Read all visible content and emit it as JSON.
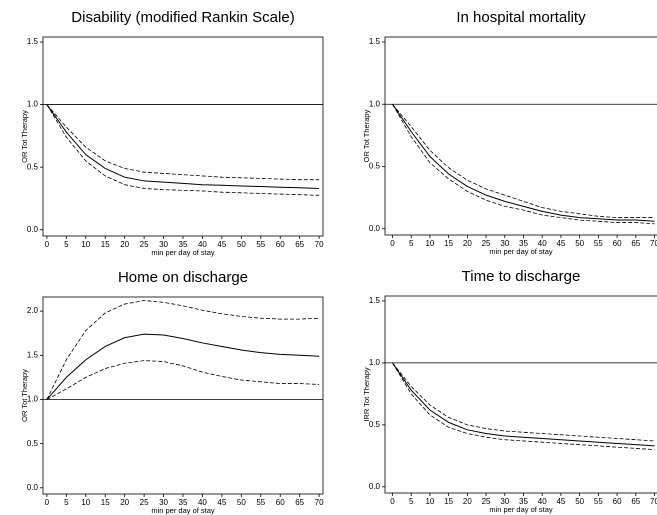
{
  "chart_data": [
    {
      "type": "line",
      "title": "Disability (modified Rankin Scale)",
      "xlabel": "min per day of stay",
      "ylabel": "OR Tot Therapy",
      "x": [
        0,
        5,
        10,
        15,
        20,
        25,
        30,
        35,
        40,
        45,
        50,
        55,
        60,
        65,
        70
      ],
      "xlim": [
        -1,
        71
      ],
      "xticks": [
        0,
        5,
        10,
        15,
        20,
        25,
        30,
        35,
        40,
        45,
        50,
        55,
        60,
        65,
        70
      ],
      "ylim": [
        -0.05,
        1.54
      ],
      "yticks": [
        {
          "value": 0,
          "label": "0.0"
        },
        {
          "value": 0.5,
          "label": "0.5"
        },
        {
          "value": 1,
          "label": "1.0"
        },
        {
          "value": 1.5,
          "label": "1.5"
        }
      ],
      "hline": 1,
      "series": [
        {
          "color": "#000000",
          "dashed": false,
          "values": [
            1.0,
            0.78,
            0.6,
            0.49,
            0.42,
            0.39,
            0.38,
            0.37,
            0.36,
            0.355,
            0.35,
            0.345,
            0.34,
            0.335,
            0.33
          ]
        },
        {
          "color": "#000000",
          "dashed": true,
          "values": [
            1.0,
            0.82,
            0.66,
            0.55,
            0.49,
            0.46,
            0.45,
            0.44,
            0.43,
            0.42,
            0.415,
            0.41,
            0.405,
            0.4,
            0.4
          ]
        },
        {
          "color": "#000000",
          "dashed": true,
          "values": [
            1.0,
            0.74,
            0.55,
            0.43,
            0.36,
            0.33,
            0.32,
            0.315,
            0.31,
            0.3,
            0.295,
            0.29,
            0.285,
            0.28,
            0.275
          ]
        }
      ]
    },
    {
      "type": "line",
      "title": "In hospital mortality",
      "xlabel": "min per day of stay",
      "ylabel": "OR Tot Therapy",
      "x": [
        0,
        5,
        10,
        15,
        20,
        25,
        30,
        35,
        40,
        45,
        50,
        55,
        60,
        65,
        70
      ],
      "xlim": [
        -2,
        72
      ],
      "xticks": [
        0,
        5,
        10,
        15,
        20,
        25,
        30,
        35,
        40,
        45,
        50,
        55,
        60,
        65,
        70
      ],
      "ylim": [
        -0.05,
        1.54
      ],
      "yticks": [
        {
          "value": 0,
          "label": "0.0"
        },
        {
          "value": 0.5,
          "label": "0.5"
        },
        {
          "value": 1,
          "label": "1.0"
        },
        {
          "value": 1.5,
          "label": "1.5"
        }
      ],
      "hline": 1,
      "series": [
        {
          "color": "#000000",
          "dashed": false,
          "values": [
            1.0,
            0.78,
            0.58,
            0.44,
            0.34,
            0.27,
            0.22,
            0.18,
            0.14,
            0.11,
            0.09,
            0.08,
            0.07,
            0.07,
            0.06
          ]
        },
        {
          "color": "#000000",
          "dashed": true,
          "values": [
            1.0,
            0.82,
            0.63,
            0.49,
            0.39,
            0.32,
            0.27,
            0.22,
            0.17,
            0.14,
            0.12,
            0.1,
            0.09,
            0.09,
            0.09
          ]
        },
        {
          "color": "#000000",
          "dashed": true,
          "values": [
            1.0,
            0.74,
            0.53,
            0.4,
            0.3,
            0.23,
            0.18,
            0.15,
            0.11,
            0.09,
            0.07,
            0.06,
            0.05,
            0.05,
            0.04
          ]
        }
      ]
    },
    {
      "type": "line",
      "title": "Home on discharge",
      "xlabel": "min per day of stay",
      "ylabel": "OR Tot Therapy",
      "x": [
        0,
        5,
        10,
        15,
        20,
        25,
        30,
        35,
        40,
        45,
        50,
        55,
        60,
        65,
        70
      ],
      "xlim": [
        -1,
        71
      ],
      "xticks": [
        0,
        5,
        10,
        15,
        20,
        25,
        30,
        35,
        40,
        45,
        50,
        55,
        60,
        65,
        70
      ],
      "ylim": [
        -0.07,
        2.16
      ],
      "yticks": [
        {
          "value": 0,
          "label": "0.0"
        },
        {
          "value": 0.5,
          "label": "0.5"
        },
        {
          "value": 1,
          "label": "1.0"
        },
        {
          "value": 1.5,
          "label": "1.5"
        },
        {
          "value": 2,
          "label": "2.0"
        }
      ],
      "hline": 1,
      "series": [
        {
          "color": "#000000",
          "dashed": false,
          "values": [
            1.0,
            1.25,
            1.45,
            1.6,
            1.7,
            1.74,
            1.73,
            1.69,
            1.64,
            1.6,
            1.56,
            1.53,
            1.51,
            1.5,
            1.49
          ]
        },
        {
          "color": "#000000",
          "dashed": true,
          "values": [
            1.0,
            1.45,
            1.78,
            1.98,
            2.08,
            2.12,
            2.1,
            2.06,
            2.01,
            1.97,
            1.94,
            1.92,
            1.91,
            1.91,
            1.92
          ]
        },
        {
          "color": "#000000",
          "dashed": true,
          "values": [
            1.0,
            1.12,
            1.25,
            1.35,
            1.41,
            1.44,
            1.43,
            1.38,
            1.31,
            1.26,
            1.22,
            1.2,
            1.18,
            1.18,
            1.17
          ]
        }
      ]
    },
    {
      "type": "line",
      "title": "Time to discharge",
      "xlabel": "min per day of stay",
      "ylabel": "IRR Tot Therapy",
      "x": [
        0,
        5,
        10,
        15,
        20,
        25,
        30,
        35,
        40,
        45,
        50,
        55,
        60,
        65,
        70
      ],
      "xlim": [
        -2,
        72
      ],
      "xticks": [
        0,
        5,
        10,
        15,
        20,
        25,
        30,
        35,
        40,
        45,
        50,
        55,
        60,
        65,
        70
      ],
      "ylim": [
        -0.05,
        1.54
      ],
      "yticks": [
        {
          "value": 0,
          "label": "0.0"
        },
        {
          "value": 0.5,
          "label": "0.5"
        },
        {
          "value": 1,
          "label": "1.0"
        },
        {
          "value": 1.5,
          "label": "1.5"
        }
      ],
      "hline": 1,
      "series": [
        {
          "color": "#000000",
          "dashed": false,
          "values": [
            1.0,
            0.78,
            0.62,
            0.52,
            0.46,
            0.43,
            0.41,
            0.4,
            0.39,
            0.38,
            0.37,
            0.36,
            0.35,
            0.34,
            0.33
          ]
        },
        {
          "color": "#000000",
          "dashed": true,
          "values": [
            1.0,
            0.81,
            0.66,
            0.56,
            0.5,
            0.47,
            0.45,
            0.44,
            0.43,
            0.42,
            0.41,
            0.4,
            0.39,
            0.38,
            0.37
          ]
        },
        {
          "color": "#000000",
          "dashed": true,
          "values": [
            1.0,
            0.75,
            0.58,
            0.48,
            0.43,
            0.4,
            0.38,
            0.37,
            0.36,
            0.35,
            0.34,
            0.33,
            0.32,
            0.31,
            0.3
          ]
        }
      ]
    }
  ]
}
